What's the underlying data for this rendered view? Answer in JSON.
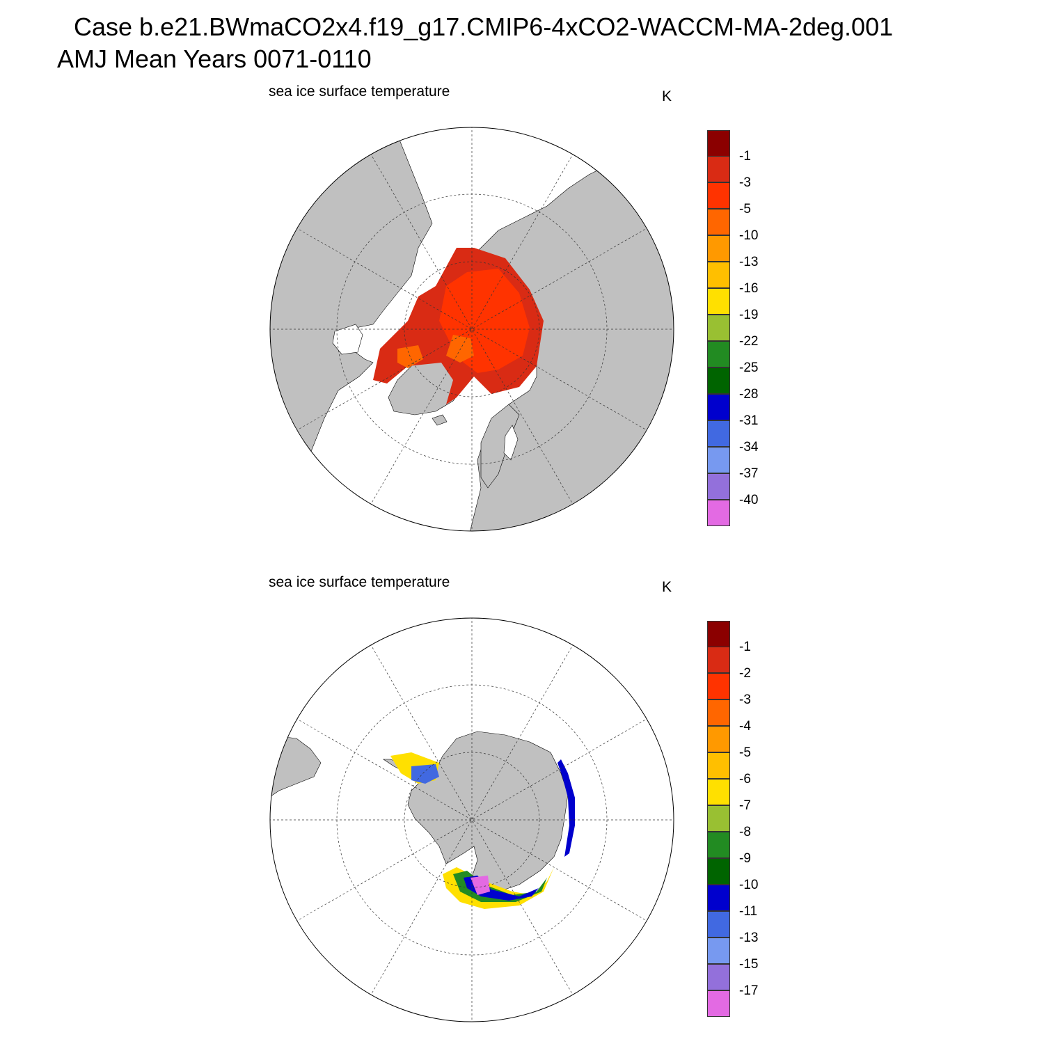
{
  "header": {
    "title_line1": "Case b.e21.BWmaCO2x4.f19_g17.CMIP6-4xCO2-WACCM-MA-2deg.001",
    "title_line2": "AMJ Mean   Years 0071-0110"
  },
  "panels": [
    {
      "title": "sea ice surface temperature",
      "units": "K",
      "hemisphere": "north",
      "colorbar": {
        "colors": [
          "#8b0000",
          "#d92b14",
          "#ff3300",
          "#ff6600",
          "#ff9900",
          "#ffbf00",
          "#ffe000",
          "#99c032",
          "#228b22",
          "#006400",
          "#0000cd",
          "#4169e1",
          "#7799f0",
          "#9370db",
          "#e36ae3"
        ],
        "labels": [
          "-1",
          "-3",
          "-5",
          "-10",
          "-13",
          "-16",
          "-19",
          "-22",
          "-25",
          "-28",
          "-31",
          "-34",
          "-37",
          "-40"
        ]
      }
    },
    {
      "title": "sea ice surface temperature",
      "units": "K",
      "hemisphere": "south",
      "colorbar": {
        "colors": [
          "#8b0000",
          "#d92b14",
          "#ff3300",
          "#ff6600",
          "#ff9900",
          "#ffbf00",
          "#ffe000",
          "#99c032",
          "#228b22",
          "#006400",
          "#0000cd",
          "#4169e1",
          "#7799f0",
          "#9370db",
          "#e36ae3"
        ],
        "labels": [
          "-1",
          "-2",
          "-3",
          "-4",
          "-5",
          "-6",
          "-7",
          "-8",
          "-9",
          "-10",
          "-11",
          "-13",
          "-15",
          "-17"
        ]
      }
    }
  ]
}
